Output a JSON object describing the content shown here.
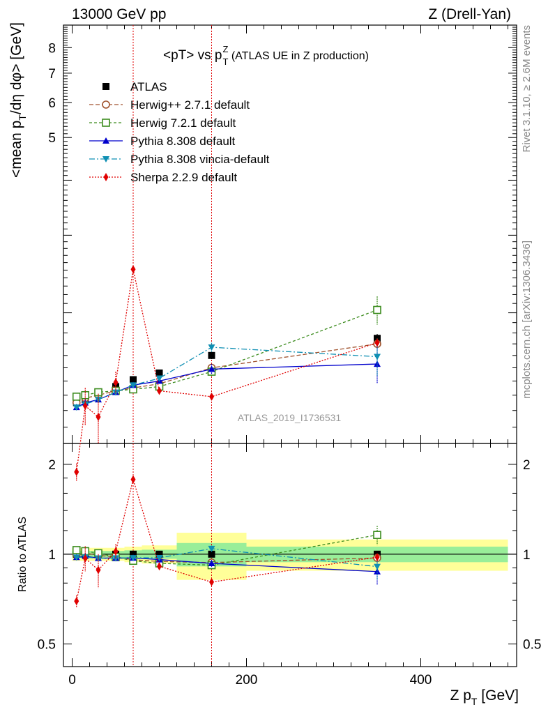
{
  "header": {
    "left": "13000 GeV pp",
    "right": "Z (Drell-Yan)"
  },
  "title": {
    "main": "<pT> vs p",
    "sup": "Z",
    "sub": "T",
    "suffix": " (ATLAS UE in Z production)"
  },
  "side_labels": {
    "rivet": "Rivet 3.1.10, ≥ 2.6M events",
    "mcplots": "mcplots.cern.ch [arXiv:1306.3436]"
  },
  "analysis_tag": "ATLAS_2019_I1736531",
  "axes": {
    "ylabel_main_parts": [
      "<mean p",
      "T",
      "/dη dφ> [GeV]"
    ],
    "ylabel_ratio": "Ratio to ATLAS",
    "xlabel_parts": [
      "Z p",
      "T",
      " [GeV]"
    ],
    "x_ticks": [
      "0",
      "200",
      "400"
    ],
    "y_ticks_main": [
      "5",
      "6",
      "7",
      "8"
    ],
    "y_ticks_ratio": [
      "0.5",
      "1",
      "2"
    ]
  },
  "chart_data": {
    "type": "line",
    "x_range": [
      -10,
      510
    ],
    "y_range_main": [
      1.01,
      9.0
    ],
    "y_log_main": true,
    "y_range_ratio": [
      0.42,
      2.35
    ],
    "y_log_ratio": true,
    "grid": false,
    "legend_placement": "top-left",
    "vertical_lines_x": [
      70,
      160
    ],
    "x": [
      5,
      15,
      30,
      50,
      70,
      100,
      160,
      350
    ],
    "series": [
      {
        "name": "ATLAS",
        "color": "#000000",
        "marker": "square-filled",
        "dash": "none",
        "values": [
          1.25,
          1.27,
          1.31,
          1.36,
          1.41,
          1.46,
          1.6,
          1.75
        ],
        "errors": [
          0.02,
          0.02,
          0.02,
          0.02,
          0.02,
          0.02,
          0.03,
          0.04
        ]
      },
      {
        "name": "Herwig++ 2.7.1 default",
        "color": "#a0522d",
        "marker": "circle-open",
        "dash": "6,3",
        "values": [
          1.25,
          1.28,
          1.3,
          1.33,
          1.35,
          1.38,
          1.5,
          1.7
        ],
        "errors": [
          0.02,
          0.02,
          0.02,
          0.02,
          0.02,
          0.02,
          0.03,
          0.05
        ]
      },
      {
        "name": "Herwig 7.2.1 default",
        "color": "#3c8c1e",
        "marker": "square-open",
        "dash": "4,3",
        "values": [
          1.29,
          1.3,
          1.32,
          1.33,
          1.34,
          1.36,
          1.47,
          2.03
        ],
        "errors": [
          0.02,
          0.02,
          0.02,
          0.02,
          0.02,
          0.02,
          0.04,
          0.15
        ]
      },
      {
        "name": "Pythia 8.308 default",
        "color": "#0000cc",
        "marker": "triangle-up",
        "dash": "none",
        "values": [
          1.22,
          1.25,
          1.27,
          1.32,
          1.37,
          1.4,
          1.49,
          1.53
        ],
        "errors": [
          0.02,
          0.02,
          0.02,
          0.02,
          0.02,
          0.02,
          0.04,
          0.15
        ]
      },
      {
        "name": "Pythia 8.308 vincia-default",
        "color": "#0f8fb3",
        "marker": "triangle-down",
        "dash": "8,3,2,3",
        "values": [
          1.22,
          1.24,
          1.27,
          1.32,
          1.37,
          1.42,
          1.67,
          1.59
        ],
        "errors": [
          0.02,
          0.02,
          0.02,
          0.02,
          0.02,
          0.02,
          0.04,
          0.15
        ]
      },
      {
        "name": "Sherpa 2.2.9 default",
        "color": "#e00000",
        "marker": "diamond",
        "dash": "2,2",
        "values": [
          0.87,
          1.23,
          1.16,
          1.39,
          2.51,
          1.33,
          1.29,
          1.71
        ],
        "errors": [
          0.04,
          0.12,
          0.15,
          0.08,
          0.0,
          0.0,
          0.0,
          0.0
        ]
      }
    ],
    "bands": [
      {
        "x0": 0,
        "x1": 10,
        "green": 0.025,
        "yellow": 0.05
      },
      {
        "x0": 10,
        "x1": 20,
        "green": 0.025,
        "yellow": 0.05
      },
      {
        "x0": 20,
        "x1": 40,
        "green": 0.025,
        "yellow": 0.05
      },
      {
        "x0": 40,
        "x1": 60,
        "green": 0.025,
        "yellow": 0.05
      },
      {
        "x0": 60,
        "x1": 80,
        "green": 0.03,
        "yellow": 0.06
      },
      {
        "x0": 80,
        "x1": 120,
        "green": 0.035,
        "yellow": 0.07
      },
      {
        "x0": 120,
        "x1": 200,
        "green": 0.09,
        "yellow": 0.18
      },
      {
        "x0": 200,
        "x1": 500,
        "green": 0.06,
        "yellow": 0.12
      }
    ]
  }
}
